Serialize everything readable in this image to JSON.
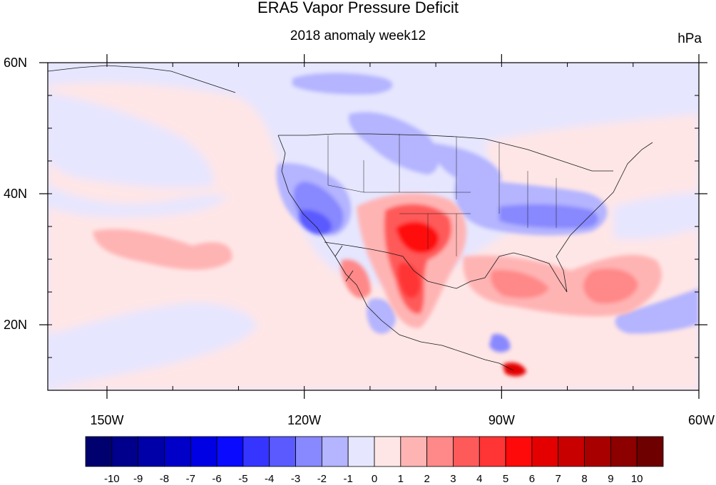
{
  "figure": {
    "title": "ERA5 Vapor Pressure Deficit",
    "subtitle": "2018 anomaly week12",
    "units": "hPa"
  },
  "map": {
    "lon_range": [
      -159,
      -60
    ],
    "lat_range": [
      10,
      60
    ],
    "x_ticks": [
      {
        "lon": -150,
        "label": "150W"
      },
      {
        "lon": -120,
        "label": "120W"
      },
      {
        "lon": -90,
        "label": "90W"
      },
      {
        "lon": -60,
        "label": "60W"
      }
    ],
    "y_ticks": [
      {
        "lat": 60,
        "label": "60N"
      },
      {
        "lat": 40,
        "label": "40N"
      },
      {
        "lat": 20,
        "label": "20N"
      }
    ],
    "background_level": "0",
    "anomaly_regions": [
      {
        "name": "North Pacific",
        "lon": -140,
        "lat": 45,
        "level": "0"
      },
      {
        "name": "Northeast Pacific strip",
        "lon": -117,
        "lat": 55,
        "level": "-1"
      },
      {
        "name": "Gulf of Alaska coast",
        "lon": -123,
        "lat": 57,
        "level": "-2"
      },
      {
        "name": "Southwest Pacific band",
        "lon": -135,
        "lat": 15,
        "level": "-1"
      },
      {
        "name": "Central Pacific band",
        "lon": -147,
        "lat": 20,
        "level": "-1"
      },
      {
        "name": "Subtropical Pacific",
        "lon": -138,
        "lat": 32,
        "level": "1"
      },
      {
        "name": "US Northwest",
        "lon": -116,
        "lat": 44,
        "level": "-1"
      },
      {
        "name": "California",
        "lon": -118,
        "lat": 36,
        "level": "-4"
      },
      {
        "name": "Great Basin",
        "lon": -115,
        "lat": 39,
        "level": "-2"
      },
      {
        "name": "Northern Plains",
        "lon": -101,
        "lat": 46,
        "level": "-1"
      },
      {
        "name": "Ohio Valley",
        "lon": -86,
        "lat": 38,
        "level": "-2"
      },
      {
        "name": "Mid-Atlantic",
        "lon": -77,
        "lat": 38,
        "level": "-3"
      },
      {
        "name": "Southern Plains",
        "lon": -102,
        "lat": 34,
        "level": "6"
      },
      {
        "name": "Northern Mexico",
        "lon": -104,
        "lat": 27,
        "level": "6"
      },
      {
        "name": "Central Mexico",
        "lon": -102,
        "lat": 22,
        "level": "3"
      },
      {
        "name": "Gulf of Mexico",
        "lon": -88,
        "lat": 26,
        "level": "2"
      },
      {
        "name": "Western Atlantic",
        "lon": -75,
        "lat": 28,
        "level": "2"
      },
      {
        "name": "Western Caribbean",
        "lon": -82,
        "lat": 20,
        "level": "1"
      },
      {
        "name": "Eastern Caribbean",
        "lon": -66,
        "lat": 20,
        "level": "-1"
      },
      {
        "name": "Central America",
        "lon": -88,
        "lat": 13,
        "level": "5"
      }
    ]
  },
  "colorbar": {
    "levels": [
      {
        "label": "-10",
        "color": "#00006e"
      },
      {
        "label": "-9",
        "color": "#00008c"
      },
      {
        "label": "-8",
        "color": "#0000a8"
      },
      {
        "label": "-7",
        "color": "#0000c8"
      },
      {
        "label": "-6",
        "color": "#0000e4"
      },
      {
        "label": "-5",
        "color": "#0a0aff"
      },
      {
        "label": "-4",
        "color": "#3535ff"
      },
      {
        "label": "-3",
        "color": "#5a5aff"
      },
      {
        "label": "-2",
        "color": "#8888ff"
      },
      {
        "label": "-1",
        "color": "#b4b4ff"
      },
      {
        "label": "0",
        "color": "#e6e6ff"
      },
      {
        "label": "1",
        "color": "#ffe6e6"
      },
      {
        "label": "2",
        "color": "#ffb4b4"
      },
      {
        "label": "3",
        "color": "#ff8888"
      },
      {
        "label": "4",
        "color": "#ff5a5a"
      },
      {
        "label": "5",
        "color": "#ff3535"
      },
      {
        "label": "6",
        "color": "#ff0a0a"
      },
      {
        "label": "7",
        "color": "#e40000"
      },
      {
        "label": "8",
        "color": "#c80000"
      },
      {
        "label": "9",
        "color": "#a80000"
      },
      {
        "label": "10",
        "color": "#8c0000"
      },
      {
        "label": "",
        "color": "#6e0000"
      }
    ]
  }
}
